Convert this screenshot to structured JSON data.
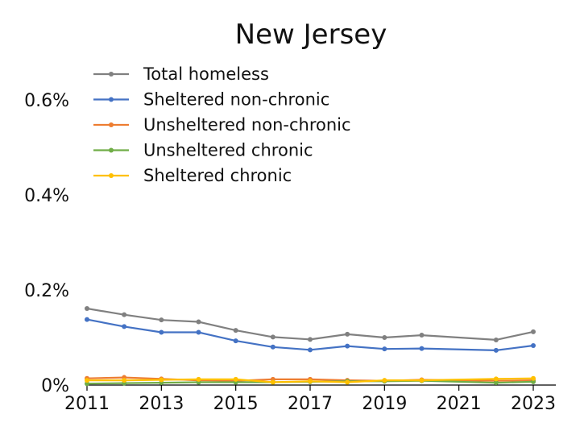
{
  "chart_data": {
    "type": "line",
    "title": "New Jersey",
    "xlabel": "",
    "ylabel": "",
    "x": [
      2011,
      2012,
      2013,
      2014,
      2015,
      2016,
      2017,
      2018,
      2019,
      2020,
      2022,
      2023
    ],
    "xlim": [
      2011,
      2023
    ],
    "ylim": [
      0,
      0.6
    ],
    "x_ticks": [
      "2011",
      "2013",
      "2015",
      "2017",
      "2019",
      "2021",
      "2023"
    ],
    "x_tick_values": [
      2011,
      2013,
      2015,
      2017,
      2019,
      2021,
      2023
    ],
    "y_ticks": [
      "0%",
      "0.2%",
      "0.4%",
      "0.6%"
    ],
    "y_tick_values": [
      0,
      0.2,
      0.4,
      0.6
    ],
    "grid": false,
    "legend_position": "top-left",
    "series": [
      {
        "name": "Total homeless",
        "color": "#808080",
        "values": [
          0.161,
          0.148,
          0.137,
          0.133,
          0.115,
          0.101,
          0.096,
          0.107,
          0.1,
          0.105,
          0.095,
          0.112
        ]
      },
      {
        "name": "Sheltered non-chronic",
        "color": "#4472C4",
        "values": [
          0.138,
          0.123,
          0.111,
          0.111,
          0.093,
          0.08,
          0.074,
          0.082,
          0.076,
          0.077,
          0.073,
          0.083
        ]
      },
      {
        "name": "Unsheltered non-chronic",
        "color": "#ED7D31",
        "values": [
          0.014,
          0.016,
          0.013,
          0.01,
          0.009,
          0.012,
          0.012,
          0.01,
          0.009,
          0.011,
          0.009,
          0.01
        ]
      },
      {
        "name": "Unsheltered chronic",
        "color": "#70AD47",
        "values": [
          0.003,
          0.004,
          0.005,
          0.006,
          0.006,
          0.006,
          0.007,
          0.008,
          0.008,
          0.009,
          0.005,
          0.007
        ]
      },
      {
        "name": "Sheltered chronic",
        "color": "#FFC000",
        "values": [
          0.01,
          0.01,
          0.011,
          0.012,
          0.012,
          0.006,
          0.008,
          0.006,
          0.01,
          0.01,
          0.013,
          0.014
        ]
      }
    ]
  }
}
